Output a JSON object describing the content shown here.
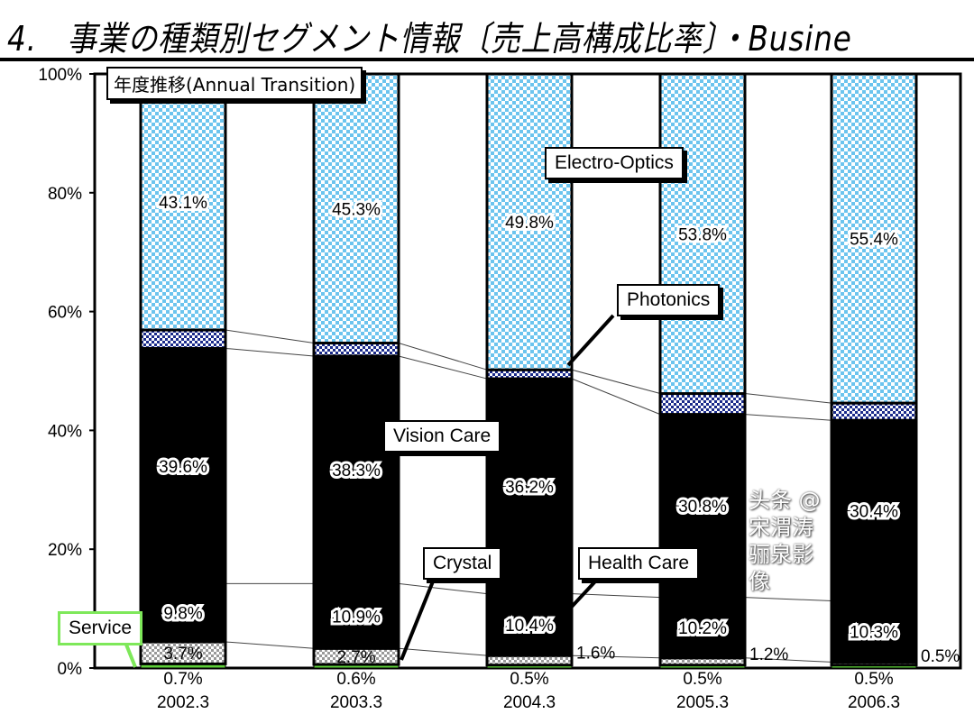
{
  "title": "4.　事業の種類別セグメント情報〔売上高構成比率〕・Busine",
  "subtitle_box": "年度推移(Annual Transition)",
  "watermark": "头条 @宋渭涛骊泉影像",
  "chart_data": {
    "type": "bar",
    "stacked": true,
    "categories": [
      "2002.3",
      "2003.3",
      "2004.3",
      "2005.3",
      "2006.3"
    ],
    "series": [
      {
        "name": "Service",
        "values": [
          0.7,
          0.6,
          0.5,
          0.5,
          0.5
        ],
        "color": "#5ecf3a"
      },
      {
        "name": "Crystal",
        "values": [
          3.7,
          2.7,
          1.6,
          1.2,
          0.5
        ],
        "color": "#b8b8b8"
      },
      {
        "name": "Health Care",
        "values": [
          9.8,
          10.9,
          10.4,
          10.2,
          10.3
        ],
        "color": "#f2a86a"
      },
      {
        "name": "Vision Care",
        "values": [
          39.6,
          38.3,
          36.2,
          30.8,
          30.4
        ],
        "color": "#f6f27a"
      },
      {
        "name": "Photonics",
        "values": [
          3.1,
          2.2,
          1.5,
          3.5,
          2.9
        ],
        "color": "#1a2a8a"
      },
      {
        "name": "Electro-Optics",
        "values": [
          43.1,
          45.3,
          49.8,
          53.8,
          55.4
        ],
        "color": "#6cc4ee"
      }
    ],
    "labels": {
      "Service": [
        "0.7%",
        "0.6%",
        "0.5%",
        "0.5%",
        "0.5%"
      ],
      "Crystal": [
        "3.7%",
        "2.7%",
        "1.6%",
        "1.2%",
        "0.5%"
      ],
      "Health Care": [
        "9.8%",
        "10.9%",
        "10.4%",
        "10.2%",
        "10.3%"
      ],
      "Vision Care": [
        "39.6%",
        "38.3%",
        "36.2%",
        "30.8%",
        "30.4%"
      ],
      "Photonics": [
        "3.1%",
        "2.2%",
        "1.5%",
        "3.5%",
        "2.9%"
      ],
      "Electro-Optics": [
        "43.1%",
        "45.3%",
        "49.8%",
        "53.8%",
        "55.4%"
      ]
    },
    "yticks": [
      "0%",
      "20%",
      "40%",
      "60%",
      "80%",
      "100%"
    ],
    "ylim": [
      0,
      100
    ],
    "legend": "callouts"
  }
}
